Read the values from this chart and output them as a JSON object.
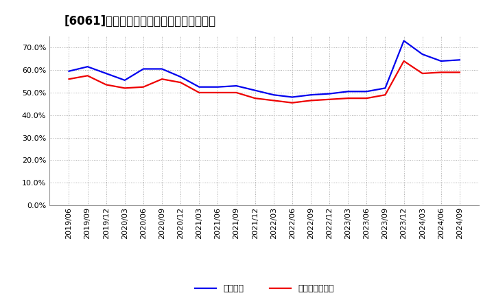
{
  "title": "[6061]　固定比率、固定長期適合率の推移",
  "x_labels": [
    "2019/06",
    "2019/09",
    "2019/12",
    "2020/03",
    "2020/06",
    "2020/09",
    "2020/12",
    "2021/03",
    "2021/06",
    "2021/09",
    "2021/12",
    "2022/03",
    "2022/06",
    "2022/09",
    "2022/12",
    "2023/03",
    "2023/06",
    "2023/09",
    "2023/12",
    "2024/03",
    "2024/06",
    "2024/09"
  ],
  "fixed_ratio": [
    59.5,
    61.5,
    58.5,
    55.5,
    60.5,
    60.5,
    57.0,
    52.5,
    52.5,
    53.0,
    51.0,
    49.0,
    48.0,
    49.0,
    49.5,
    50.5,
    50.5,
    52.0,
    73.0,
    67.0,
    64.0,
    64.5
  ],
  "fixed_longterm_ratio": [
    56.0,
    57.5,
    53.5,
    52.0,
    52.5,
    56.0,
    54.5,
    50.0,
    50.0,
    50.0,
    47.5,
    46.5,
    45.5,
    46.5,
    47.0,
    47.5,
    47.5,
    49.0,
    64.0,
    58.5,
    59.0,
    59.0
  ],
  "fixed_ratio_color": "#0000ee",
  "fixed_longterm_ratio_color": "#ee0000",
  "legend_fixed": "固定比率",
  "legend_fixed_longterm": "固定長期適合率",
  "ylim": [
    0,
    75
  ],
  "yticks": [
    0.0,
    10.0,
    20.0,
    30.0,
    40.0,
    50.0,
    60.0,
    70.0
  ],
  "background_color": "#ffffff",
  "plot_bg_color": "#ffffff",
  "grid_color": "#aaaaaa",
  "line_width": 1.6,
  "title_fontsize": 12,
  "tick_fontsize": 8,
  "legend_fontsize": 9
}
